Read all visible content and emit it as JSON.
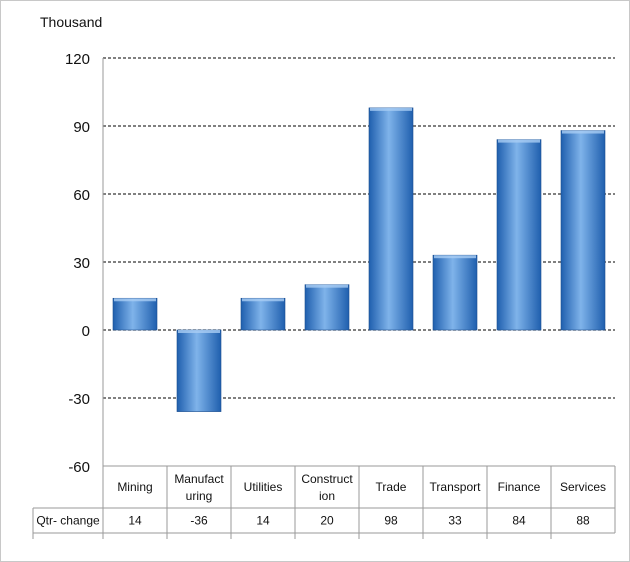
{
  "chart_data": {
    "type": "bar",
    "unit_label": "Thousand",
    "categories": [
      [
        "Mining"
      ],
      [
        "Manufact",
        "uring"
      ],
      [
        "Utilities"
      ],
      [
        "Construct",
        "ion"
      ],
      [
        "Trade"
      ],
      [
        "Transport"
      ],
      [
        "Finance"
      ],
      [
        "Services"
      ]
    ],
    "series": [
      {
        "row_label": "Qtr- change",
        "values": [
          14,
          -36,
          14,
          20,
          98,
          33,
          84,
          88
        ]
      }
    ],
    "ylim": [
      -60,
      120
    ],
    "yticks": [
      "120",
      "90",
      "60",
      "30",
      "0",
      "-30",
      "-60"
    ],
    "ytick_values": [
      120,
      90,
      60,
      30,
      0,
      -30,
      -60
    ],
    "grid": "dashed horizontal",
    "legend": "none",
    "data_table": true,
    "colors": {
      "bar": "#3d7fcf",
      "bar_dark": "#1f5fae",
      "bar_light": "#7fb3ea",
      "grid": "#000000",
      "table_border": "#9a9a9a"
    }
  }
}
